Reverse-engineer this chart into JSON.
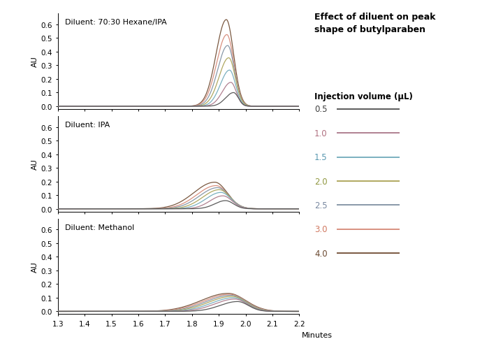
{
  "title": "Effect of diluent on peak\nshape of butylparaben",
  "legend_title": "Injection volume (μL)",
  "legend_labels": [
    "0.5",
    "1.0",
    "1.5",
    "2.0",
    "2.5",
    "3.0",
    "4.0"
  ],
  "legend_colors": [
    "#5a5a5a",
    "#b08090",
    "#7ab0c0",
    "#b0a860",
    "#8898a8",
    "#d89080",
    "#7a5840"
  ],
  "legend_text_colors": [
    "#404040",
    "#b07080",
    "#5898b0",
    "#909840",
    "#7888a0",
    "#d07860",
    "#6a4830"
  ],
  "subplot_labels": [
    "Diluent: 70:30 Hexane/IPA",
    "Diluent: IPA",
    "Diluent: Methanol"
  ],
  "ylabel": "AU",
  "xlabel": "Minutes",
  "xlim": [
    1.3,
    2.2
  ],
  "ylim": [
    -0.02,
    0.68
  ],
  "yticks": [
    0.0,
    0.1,
    0.2,
    0.3,
    0.4,
    0.5,
    0.6
  ],
  "xticks": [
    1.3,
    1.4,
    1.5,
    1.6,
    1.7,
    1.8,
    1.9,
    2.0,
    2.1,
    2.2
  ],
  "background_color": "#ffffff",
  "peaks": {
    "hexane_ipa": {
      "centers": [
        1.955,
        1.945,
        1.94,
        1.937,
        1.933,
        1.93,
        1.928
      ],
      "heights": [
        0.1,
        0.175,
        0.265,
        0.355,
        0.445,
        0.525,
        0.635
      ],
      "widths_left": [
        0.03,
        0.032,
        0.034,
        0.036,
        0.037,
        0.038,
        0.038
      ],
      "widths_right": [
        0.018,
        0.02,
        0.022,
        0.024,
        0.025,
        0.026,
        0.027
      ]
    },
    "ipa": {
      "centers": [
        1.925,
        1.915,
        1.908,
        1.902,
        1.896,
        1.89,
        1.885
      ],
      "heights": [
        0.06,
        0.095,
        0.12,
        0.14,
        0.155,
        0.17,
        0.195
      ],
      "widths_left": [
        0.04,
        0.048,
        0.056,
        0.062,
        0.068,
        0.072,
        0.078
      ],
      "widths_right": [
        0.03,
        0.035,
        0.038,
        0.04,
        0.042,
        0.044,
        0.046
      ]
    },
    "methanol": {
      "centers": [
        1.97,
        1.96,
        1.955,
        1.95,
        1.945,
        1.94,
        1.935
      ],
      "heights": [
        0.072,
        0.09,
        0.1,
        0.11,
        0.118,
        0.125,
        0.132
      ],
      "widths_left": [
        0.065,
        0.075,
        0.082,
        0.088,
        0.092,
        0.096,
        0.1
      ],
      "widths_right": [
        0.04,
        0.045,
        0.048,
        0.052,
        0.056,
        0.06,
        0.065
      ]
    }
  }
}
